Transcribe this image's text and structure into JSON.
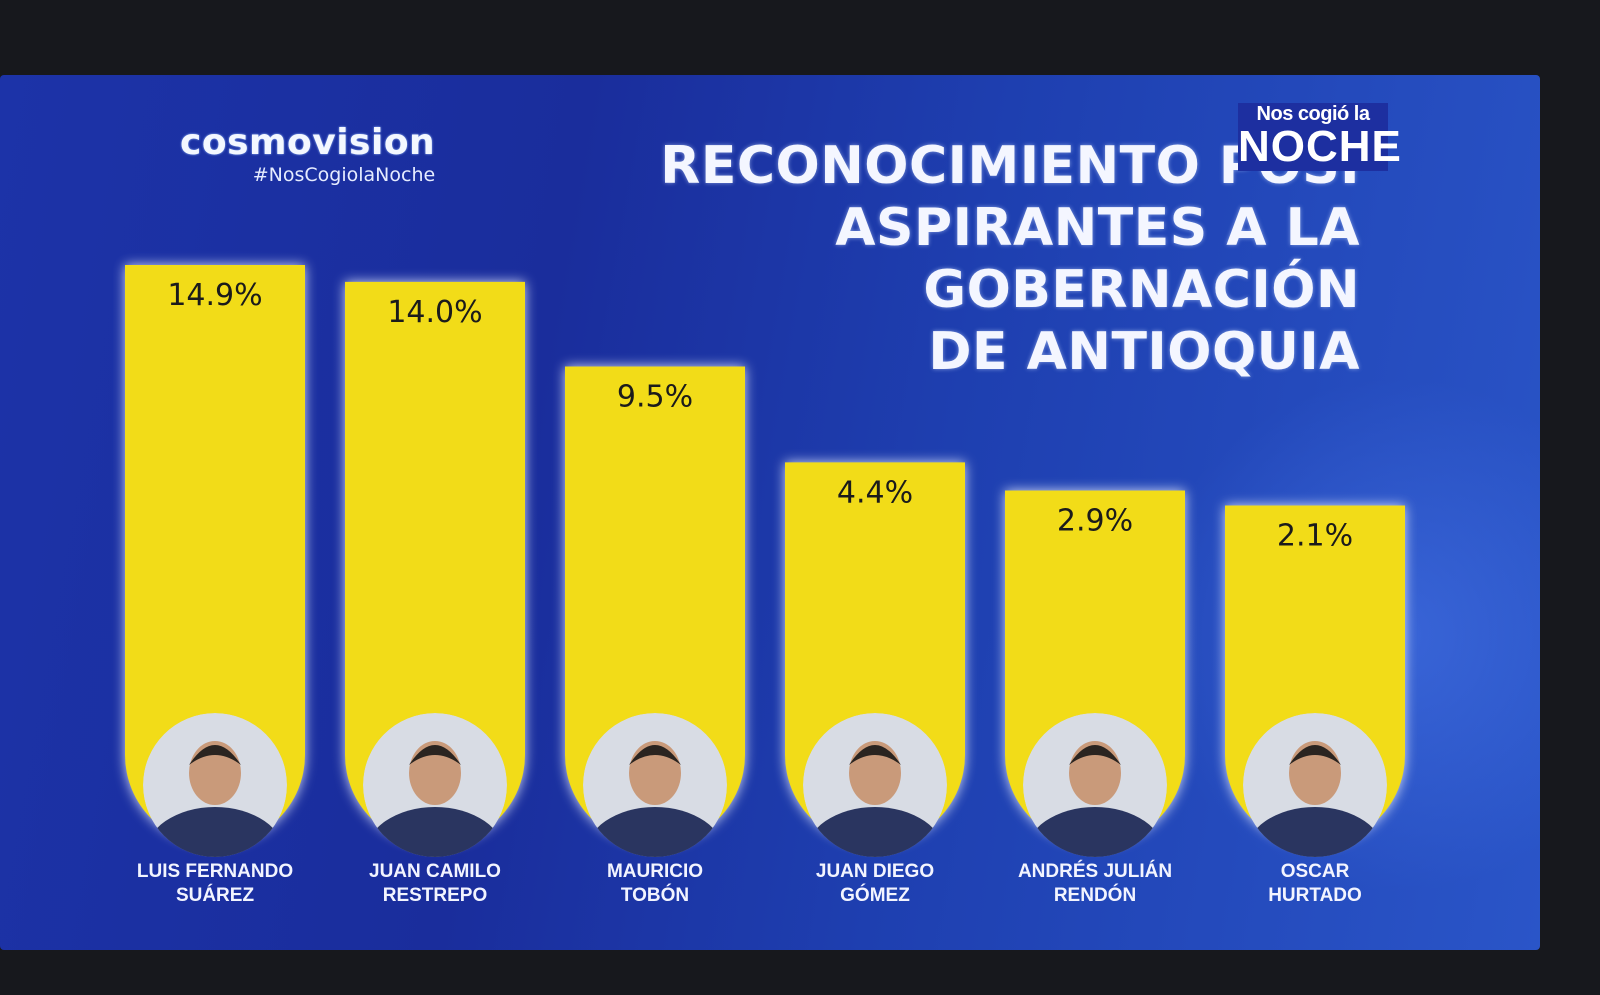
{
  "logo": {
    "brand": "cosmovision",
    "hashtag": "#NosCogiolaNoche"
  },
  "badge": {
    "top": "Nos cogió la",
    "big": "NOCHE"
  },
  "colors": {
    "background": "#1c33a8",
    "bar": "#f2dc18",
    "label": "#f2f4ff"
  },
  "chart_data": {
    "type": "bar",
    "title": [
      "RECONOCIMIENTO POSI",
      "ASPIRANTES A LA GOBERNACIÓN",
      "DE ANTIOQUIA"
    ],
    "categories": [
      [
        "LUIS FERNANDO",
        "SUÁREZ"
      ],
      [
        "JUAN CAMILO",
        "RESTREPO"
      ],
      [
        "MAURICIO",
        "TOBÓN"
      ],
      [
        "JUAN DIEGO",
        "GÓMEZ"
      ],
      [
        "ANDRÉS JULIÁN",
        "RENDÓN"
      ],
      [
        "OSCAR",
        "HURTADO"
      ]
    ],
    "values": [
      14.9,
      14.0,
      9.5,
      4.4,
      2.9,
      2.1
    ],
    "value_labels": [
      "14.9%",
      "14.0%",
      "9.5%",
      "4.4%",
      "2.9%",
      "2.1%"
    ],
    "photos": [
      "portrait-icon",
      "portrait-icon",
      "portrait-icon",
      "portrait-icon",
      "portrait-icon",
      "portrait-icon"
    ]
  }
}
